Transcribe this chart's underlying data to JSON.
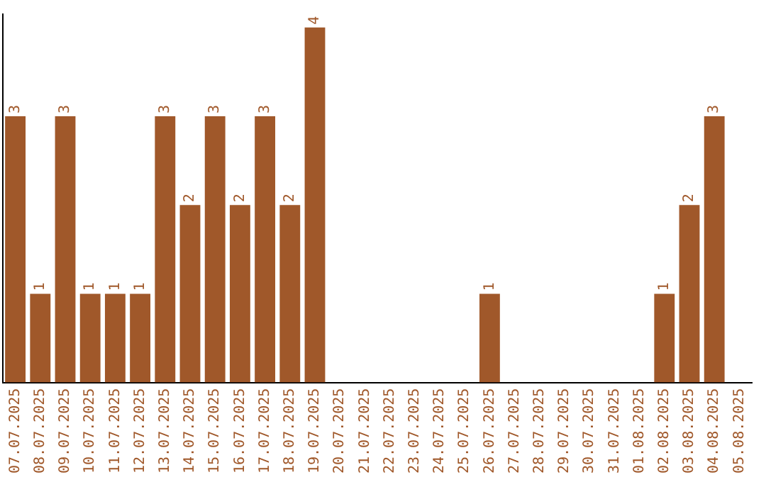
{
  "chart_data": {
    "type": "bar",
    "categories": [
      "07.07.2025",
      "08.07.2025",
      "09.07.2025",
      "10.07.2025",
      "11.07.2025",
      "12.07.2025",
      "13.07.2025",
      "14.07.2025",
      "15.07.2025",
      "16.07.2025",
      "17.07.2025",
      "18.07.2025",
      "19.07.2025",
      "20.07.2025",
      "21.07.2025",
      "22.07.2025",
      "23.07.2025",
      "24.07.2025",
      "25.07.2025",
      "26.07.2025",
      "27.07.2025",
      "28.07.2025",
      "29.07.2025",
      "30.07.2025",
      "31.07.2025",
      "01.08.2025",
      "02.08.2025",
      "03.08.2025",
      "04.08.2025",
      "05.08.2025"
    ],
    "values": [
      3,
      1,
      3,
      1,
      1,
      1,
      3,
      2,
      3,
      2,
      3,
      2,
      4,
      0,
      0,
      0,
      0,
      0,
      0,
      1,
      0,
      0,
      0,
      0,
      0,
      0,
      1,
      2,
      3,
      0
    ],
    "value_labels": [
      "3",
      "1",
      "3",
      "1",
      "1",
      "1",
      "3",
      "2",
      "3",
      "2",
      "3",
      "2",
      "4",
      null,
      null,
      null,
      null,
      null,
      null,
      "1",
      null,
      null,
      null,
      null,
      null,
      null,
      "1",
      "2",
      "3",
      null
    ],
    "color": "#a0582a",
    "ylim": [
      0,
      4.15
    ],
    "grid": false,
    "legend": false
  }
}
